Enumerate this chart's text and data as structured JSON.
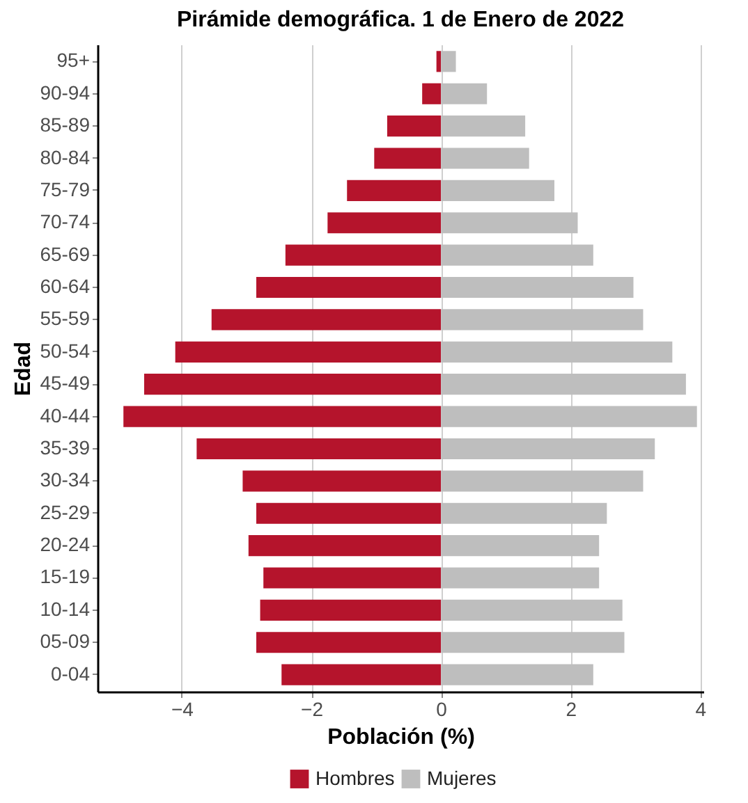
{
  "chart_data": {
    "type": "bar",
    "orientation": "horizontal",
    "stacked": true,
    "title": "Pirámide demográfica. 1 de Enero de 2022",
    "xlabel": "Población (%)",
    "ylabel": "Edad",
    "categories": [
      "95+",
      "90-94",
      "85-89",
      "80-84",
      "75-79",
      "70-74",
      "65-69",
      "60-64",
      "55-59",
      "50-54",
      "45-49",
      "40-44",
      "35-39",
      "30-34",
      "25-29",
      "20-24",
      "15-19",
      "10-14",
      "05-09",
      "0-04"
    ],
    "series": [
      {
        "name": "Hombres",
        "color": "#b5142c",
        "values": [
          -0.07,
          -0.29,
          -0.83,
          -1.03,
          -1.45,
          -1.75,
          -2.4,
          -2.85,
          -3.54,
          -4.1,
          -4.58,
          -4.9,
          -3.77,
          -3.06,
          -2.85,
          -2.97,
          -2.74,
          -2.79,
          -2.85,
          -2.46
        ]
      },
      {
        "name": "Mujeres",
        "color": "#bebebe",
        "values": [
          0.23,
          0.71,
          1.3,
          1.36,
          1.75,
          2.11,
          2.35,
          2.97,
          3.12,
          3.57,
          3.78,
          3.95,
          3.3,
          3.12,
          2.56,
          2.44,
          2.44,
          2.8,
          2.83,
          2.35
        ]
      }
    ],
    "xlim": [
      -5.3,
      4.05
    ],
    "xticks": [
      {
        "value": -4,
        "label": "−4"
      },
      {
        "value": -2,
        "label": "−2"
      },
      0,
      2,
      4
    ],
    "grid": "x",
    "legend": "bottom"
  }
}
